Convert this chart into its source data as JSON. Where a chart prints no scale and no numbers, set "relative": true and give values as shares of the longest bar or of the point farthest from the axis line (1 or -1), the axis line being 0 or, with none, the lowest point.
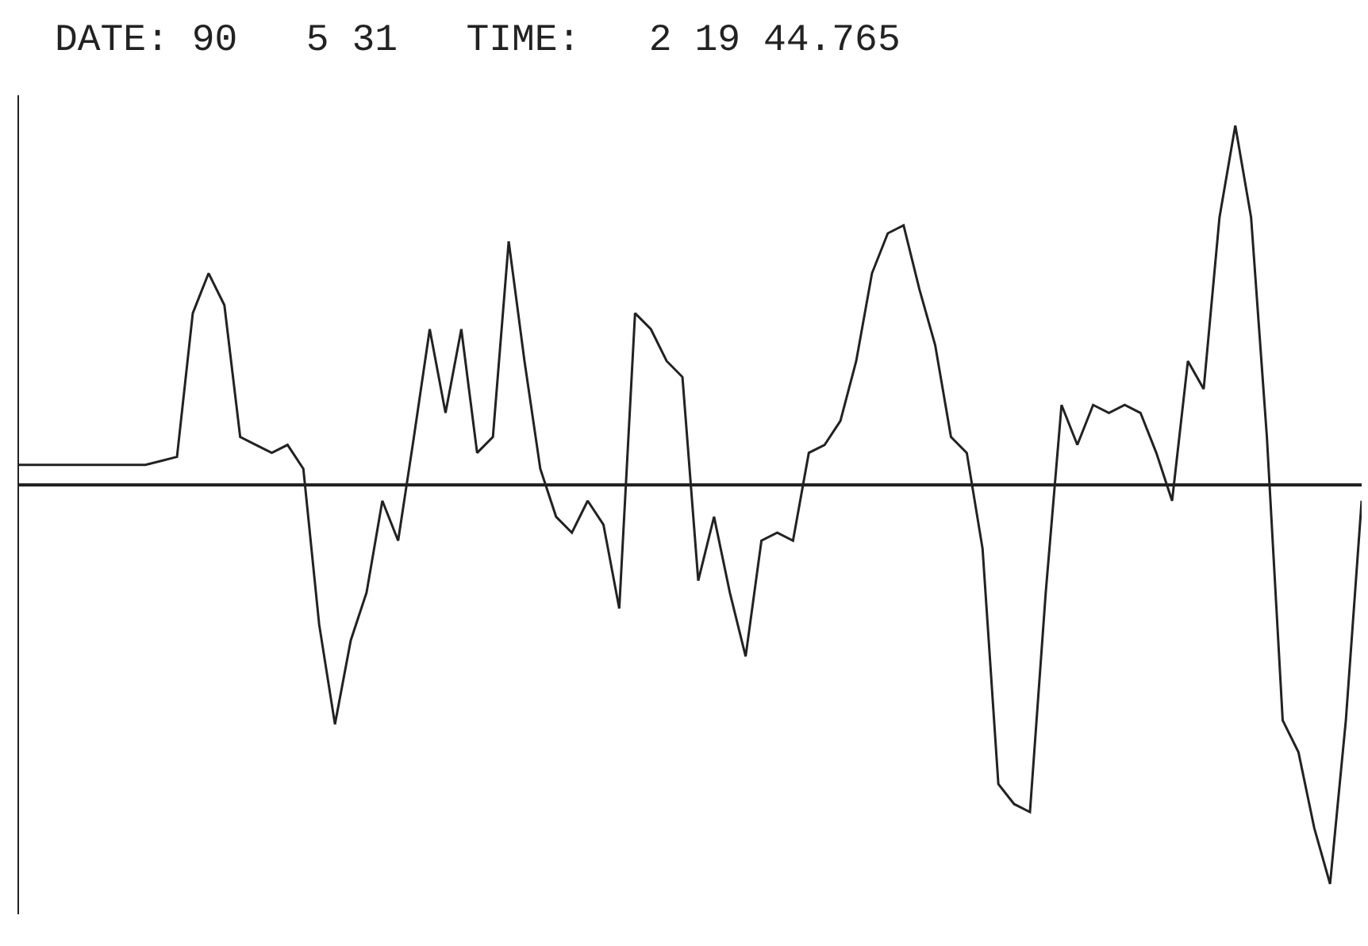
{
  "chart_data": {
    "type": "line",
    "title": "DATE: 90   5 31   TIME:   2 19 44.765",
    "relative": true,
    "color": "#222222",
    "categories": [
      null,
      null,
      null,
      null,
      null,
      null,
      null,
      null,
      null,
      null,
      null,
      null,
      null,
      null,
      null,
      null,
      null,
      null,
      null,
      null,
      null,
      null,
      null,
      null,
      null,
      null,
      null,
      null,
      null,
      null,
      null,
      null,
      null,
      null,
      null,
      null,
      null,
      null,
      null,
      null,
      null,
      null,
      null,
      null,
      null,
      null,
      null,
      null,
      null,
      null,
      null,
      null,
      null,
      null,
      null,
      null,
      null,
      null,
      null,
      null,
      null,
      null,
      null,
      null,
      null,
      null,
      null,
      null,
      null,
      null,
      null,
      null,
      null,
      null,
      null,
      null,
      null,
      null,
      null,
      null,
      null,
      null,
      null,
      null,
      null,
      null
    ],
    "values": [
      0.05,
      0.05,
      0.05,
      0.05,
      0.05,
      0.05,
      0.05,
      0.05,
      0.05,
      0.06,
      0.07,
      0.43,
      0.53,
      0.45,
      0.12,
      0.1,
      0.08,
      0.1,
      0.04,
      -0.35,
      -0.6,
      -0.39,
      -0.27,
      -0.04,
      -0.14,
      0.12,
      0.39,
      0.18,
      0.39,
      0.08,
      0.12,
      0.61,
      0.31,
      0.04,
      -0.08,
      -0.12,
      -0.04,
      -0.1,
      -0.31,
      0.43,
      0.39,
      0.31,
      0.27,
      -0.24,
      -0.08,
      -0.27,
      -0.43,
      -0.14,
      -0.12,
      -0.14,
      0.08,
      0.1,
      0.16,
      0.31,
      0.53,
      0.63,
      0.65,
      0.49,
      0.35,
      0.12,
      0.08,
      -0.16,
      -0.75,
      -0.8,
      -0.82,
      -0.27,
      0.2,
      0.1,
      0.2,
      0.18,
      0.2,
      0.18,
      0.08,
      -0.04,
      0.31,
      0.24,
      0.67,
      0.9,
      0.67,
      0.12,
      -0.59,
      -0.67,
      -0.86,
      -1.0,
      -0.59,
      -0.04
    ]
  }
}
